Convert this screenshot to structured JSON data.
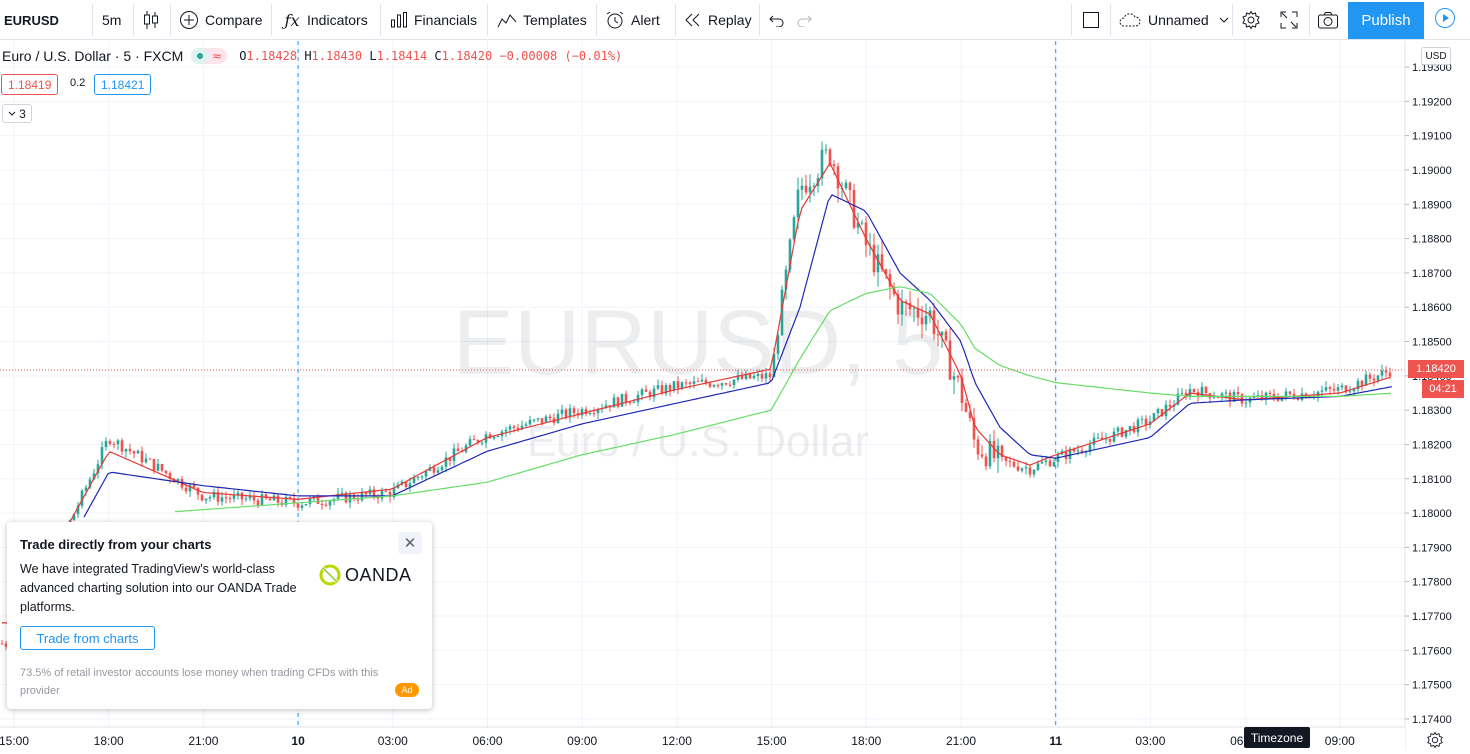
{
  "toolbar": {
    "symbol": "EURUSD",
    "interval": "5m",
    "compare": "Compare",
    "indicators": "Indicators",
    "financials": "Financials",
    "templates": "Templates",
    "alert": "Alert",
    "replay": "Replay",
    "layout_name": "Unnamed",
    "publish": "Publish"
  },
  "legend": {
    "title": "Euro / U.S. Dollar · 5 · FXCM",
    "open_label": "O",
    "open": "1.18428",
    "high_label": "H",
    "high": "1.18430",
    "low_label": "L",
    "low": "1.18414",
    "close_label": "C",
    "close": "1.18420",
    "change": "−0.00008 (−0.01%)",
    "sell_price": "1.18419",
    "spread": "0.2",
    "buy_price": "1.18421",
    "indicators_count": "3"
  },
  "watermark": {
    "symbol": "EURUSD, 5",
    "description": "Euro / U.S. Dollar"
  },
  "price_axis": {
    "currency": "USD",
    "current_price": "1.18420",
    "countdown": "04:21",
    "ticks": [
      "1.19300",
      "1.19200",
      "1.19100",
      "1.19000",
      "1.18900",
      "1.18800",
      "1.18700",
      "1.18600",
      "1.18500",
      "1.18400",
      "1.18300",
      "1.18200",
      "1.18100",
      "1.18000",
      "1.17900",
      "1.17800",
      "1.17700",
      "1.17600",
      "1.17500",
      "1.17400"
    ]
  },
  "time_axis": {
    "ticks": [
      "15:00",
      "18:00",
      "21:00",
      "10",
      "03:00",
      "06:00",
      "09:00",
      "12:00",
      "15:00",
      "18:00",
      "21:00",
      "11",
      "03:00",
      "06:00",
      "09:00"
    ],
    "timezone_button": "Timezone"
  },
  "colors": {
    "up": "#26a69a",
    "down": "#ef5350",
    "ma_fast": "#e53935",
    "ma_mid": "#1e28b4",
    "ma_slow": "#66dd66",
    "accent": "#2196f3"
  },
  "ad": {
    "title": "Trade directly from your charts",
    "body": "We have integrated TradingView's world-class advanced charting solution into our OANDA Trade platforms.",
    "logo": "OANDA",
    "button": "Trade from charts",
    "disclaimer": "73.5% of retail investor accounts lose money when trading CFDs with this provider",
    "badge": "Ad"
  },
  "chart_data": {
    "type": "candlestick",
    "symbol": "EURUSD",
    "interval": "5",
    "x": [
      "15:00",
      "18:00",
      "21:00",
      "10",
      "03:00",
      "06:00",
      "09:00",
      "12:00",
      "15:00",
      "16:00",
      "17:00",
      "18:00",
      "19:00",
      "20:00",
      "21:00",
      "21:30",
      "22:00",
      "23:00",
      "11",
      "03:00",
      "04:00",
      "06:00",
      "09:00",
      "10:00"
    ],
    "close": [
      1.1762,
      1.1822,
      1.1805,
      1.1803,
      1.1806,
      1.1823,
      1.183,
      1.1837,
      1.184,
      1.1895,
      1.1905,
      1.1878,
      1.186,
      1.1858,
      1.1835,
      1.182,
      1.1815,
      1.1813,
      1.1816,
      1.1827,
      1.1836,
      1.1833,
      1.1836,
      1.1842
    ],
    "ylim": [
      1.1739,
      1.1938
    ],
    "series": [
      {
        "values": [
          1.1768,
          1.1818,
          1.1806,
          1.1804,
          1.1807,
          1.1822,
          1.1829,
          1.1836,
          1.1842,
          1.1888,
          1.1902,
          1.188,
          1.1862,
          1.1858,
          1.184,
          1.1825,
          1.1817,
          1.1814,
          1.1817,
          1.1826,
          1.1835,
          1.1833,
          1.1835,
          1.184
        ]
      },
      {
        "values": [
          1.1762,
          1.1812,
          1.1808,
          1.1805,
          1.1805,
          1.1818,
          1.1826,
          1.1832,
          1.1838,
          1.186,
          1.1893,
          1.1888,
          1.187,
          1.1862,
          1.185,
          1.1838,
          1.1825,
          1.1817,
          1.1816,
          1.1822,
          1.1832,
          1.1833,
          1.1834,
          1.1837
        ]
      },
      {
        "values": [
          1.1796,
          1.1799,
          1.1801,
          1.1803,
          1.1805,
          1.1809,
          1.1817,
          1.1823,
          1.183,
          1.1845,
          1.1859,
          1.1864,
          1.1866,
          1.1864,
          1.1855,
          1.1848,
          1.1843,
          1.184,
          1.1838,
          1.1835,
          1.1834,
          1.1834,
          1.1834,
          1.1835
        ]
      }
    ]
  }
}
